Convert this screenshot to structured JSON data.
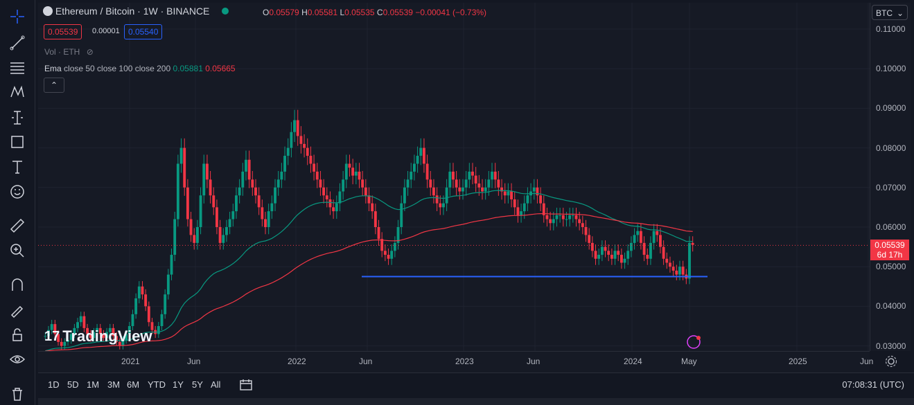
{
  "symbol": {
    "title": "Ethereum / Bitcoin · 1W · BINANCE",
    "ohlc": {
      "o_label": "O",
      "o": "0.05579",
      "h_label": "H",
      "h": "0.05581",
      "l_label": "L",
      "l": "0.05535",
      "c_label": "C",
      "c": "0.05539",
      "change": "−0.00041 (−0.73%)"
    },
    "bid": "0.05539",
    "spread": "0.00001",
    "ask": "0.05540"
  },
  "indicators": {
    "volume": "Vol · ETH",
    "ema_name": "Ema",
    "ema_params": "close 50 close 100 close 200",
    "ema_val_1": "0.05881",
    "ema_val_2": "0.05665",
    "ema_colors": [
      "#089981",
      "#f23645"
    ]
  },
  "price_axis": {
    "currency": "BTC",
    "ticks": [
      "0.11000",
      "0.10000",
      "0.09000",
      "0.08000",
      "0.07000",
      "0.06000",
      "0.05000",
      "0.04000",
      "0.03000"
    ],
    "last_price": "0.05539",
    "countdown": "6d 17h"
  },
  "time_axis": {
    "ticks": [
      "2021",
      "Jun",
      "2022",
      "Jun",
      "2023",
      "Jun",
      "2024",
      "May",
      "2025",
      "Jun"
    ]
  },
  "ranges": [
    "1D",
    "5D",
    "1M",
    "3M",
    "6M",
    "YTD",
    "1Y",
    "5Y",
    "All"
  ],
  "clock": "07:08:31 (UTC)",
  "watermark": "TradingView",
  "support_line_price": 0.0475,
  "colors": {
    "up": "#089981",
    "down": "#f23645",
    "support": "#2962ff",
    "ema50": "#089981",
    "ema200": "#f23645"
  }
}
